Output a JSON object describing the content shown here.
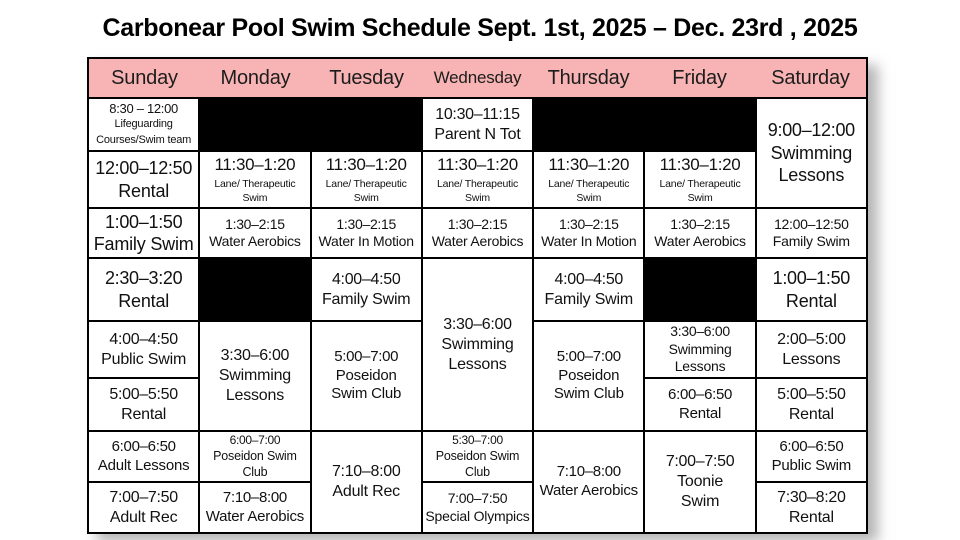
{
  "title": "Carbonear Pool Swim Schedule Sept. 1st, 2025 – Dec. 23rd , 2025",
  "theme": {
    "header_bg": "#f8b4b4",
    "cell_bg": "#ffffff",
    "blackout_bg": "#000000",
    "border_color": "#000000",
    "text_color": "#111111"
  },
  "days": [
    {
      "label": "Sunday"
    },
    {
      "label": "Monday"
    },
    {
      "label": "Tuesday"
    },
    {
      "label": "Wednesday",
      "compact": true
    },
    {
      "label": "Thursday"
    },
    {
      "label": "Friday"
    },
    {
      "label": "Saturday"
    }
  ],
  "columns": [
    {
      "day": "Sunday",
      "cells": [
        {
          "row": 1,
          "span": 1,
          "time": "8:30 – 12:00",
          "label": "Lifeguarding\nCourses/Swim team",
          "size": "sm"
        },
        {
          "row": 2,
          "span": 1,
          "time": "12:00–12:50",
          "label": "Rental",
          "size": "xl"
        },
        {
          "row": 3,
          "span": 1,
          "time": "1:00–1:50",
          "label": "Family Swim",
          "size": "xl"
        },
        {
          "row": 4,
          "span": 1,
          "time": "2:30–3:20",
          "label": "Rental",
          "size": "xl"
        },
        {
          "row": 5,
          "span": 1,
          "time": "4:00–4:50",
          "label": "Public Swim",
          "size": "lg"
        },
        {
          "row": 6,
          "span": 1,
          "time": "5:00–5:50",
          "label": "Rental",
          "size": "lg"
        },
        {
          "row": 7,
          "span": 1,
          "time": "6:00–6:50",
          "label": "Adult Lessons",
          "size": "mdlg"
        },
        {
          "row": 8,
          "span": 1,
          "time": "7:00–7:50",
          "label": "Adult Rec",
          "size": "lg"
        }
      ]
    },
    {
      "day": "Monday",
      "cells": [
        {
          "row": 1,
          "span": 1,
          "black": true
        },
        {
          "row": 2,
          "span": 1,
          "time": "11:30–1:20",
          "label": "Lane/ Therapeutic\nSwim",
          "size": "timebig"
        },
        {
          "row": 3,
          "span": 1,
          "time": "1:30–2:15",
          "label": "Water Aerobics",
          "size": "md"
        },
        {
          "row": 4,
          "span": 1,
          "black": true
        },
        {
          "row": 5,
          "span": 2,
          "time": "3:30–6:00",
          "label": "Swimming\nLessons",
          "size": "lg"
        },
        {
          "row": 7,
          "span": 1,
          "time": "6:00–7:00",
          "label": "Poseidon Swim Club",
          "size": "sm2"
        },
        {
          "row": 8,
          "span": 1,
          "time": "7:10–8:00",
          "label": "Water Aerobics",
          "size": "mdlg"
        }
      ]
    },
    {
      "day": "Tuesday",
      "cells": [
        {
          "row": 1,
          "span": 1,
          "black": true
        },
        {
          "row": 2,
          "span": 1,
          "time": "11:30–1:20",
          "label": "Lane/ Therapeutic\nSwim",
          "size": "timebig"
        },
        {
          "row": 3,
          "span": 1,
          "time": "1:30–2:15",
          "label": "Water In Motion",
          "size": "md"
        },
        {
          "row": 4,
          "span": 1,
          "time": "4:00–4:50",
          "label": "Family Swim",
          "size": "lg"
        },
        {
          "row": 5,
          "span": 2,
          "time": "5:00–7:00",
          "label": "Poseidon\nSwim Club",
          "size": "mdlg"
        },
        {
          "row": 7,
          "span": 2,
          "time": "7:10–8:00",
          "label": "Adult Rec",
          "size": "lg"
        }
      ]
    },
    {
      "day": "Wednesday",
      "cells": [
        {
          "row": 1,
          "span": 1,
          "time": "10:30–11:15",
          "label": "Parent N Tot",
          "size": "lg"
        },
        {
          "row": 2,
          "span": 1,
          "time": "11:30–1:20",
          "label": "Lane/ Therapeutic\nSwim",
          "size": "timebig"
        },
        {
          "row": 3,
          "span": 1,
          "time": "1:30–2:15",
          "label": "Water Aerobics",
          "size": "md"
        },
        {
          "row": 4,
          "span": 3,
          "time": "3:30–6:00",
          "label": "Swimming\nLessons",
          "size": "lg"
        },
        {
          "row": 7,
          "span": 1,
          "time": "5:30–7:00",
          "label": "Poseidon Swim Club",
          "size": "sm2"
        },
        {
          "row": 8,
          "span": 1,
          "time": "7:00–7:50",
          "label": "Special Olympics",
          "size": "md"
        }
      ]
    },
    {
      "day": "Thursday",
      "cells": [
        {
          "row": 1,
          "span": 1,
          "black": true
        },
        {
          "row": 2,
          "span": 1,
          "time": "11:30–1:20",
          "label": "Lane/ Therapeutic\nSwim",
          "size": "timebig"
        },
        {
          "row": 3,
          "span": 1,
          "time": "1:30–2:15",
          "label": "Water In Motion",
          "size": "md"
        },
        {
          "row": 4,
          "span": 1,
          "time": "4:00–4:50",
          "label": "Family Swim",
          "size": "lg"
        },
        {
          "row": 5,
          "span": 2,
          "time": "5:00–7:00",
          "label": "Poseidon\nSwim Club",
          "size": "mdlg"
        },
        {
          "row": 7,
          "span": 2,
          "time": "7:10–8:00",
          "label": "Water Aerobics",
          "size": "mdlg"
        }
      ]
    },
    {
      "day": "Friday",
      "cells": [
        {
          "row": 1,
          "span": 1,
          "black": true
        },
        {
          "row": 2,
          "span": 1,
          "time": "11:30–1:20",
          "label": "Lane/ Therapeutic\nSwim",
          "size": "timebig"
        },
        {
          "row": 3,
          "span": 1,
          "time": "1:30–2:15",
          "label": "Water Aerobics",
          "size": "md"
        },
        {
          "row": 4,
          "span": 1,
          "black": true
        },
        {
          "row": 5,
          "span": 1,
          "time": "3:30–6:00",
          "label": "Swimming\nLessons",
          "size": "md"
        },
        {
          "row": 6,
          "span": 1,
          "time": "6:00–6:50",
          "label": "Rental",
          "size": "mdlg"
        },
        {
          "row": 7,
          "span": 2,
          "time": "7:00–7:50",
          "label": "Toonie\nSwim",
          "size": "lg"
        }
      ]
    },
    {
      "day": "Saturday",
      "cells": [
        {
          "row": 1,
          "span": 2,
          "time": "9:00–12:00",
          "label": "Swimming\nLessons",
          "size": "xl"
        },
        {
          "row": 3,
          "span": 1,
          "time": "12:00–12:50",
          "label": "Family Swim",
          "size": "md"
        },
        {
          "row": 4,
          "span": 1,
          "time": "1:00–1:50",
          "label": "Rental",
          "size": "xl"
        },
        {
          "row": 5,
          "span": 1,
          "time": "2:00–5:00",
          "label": "Lessons",
          "size": "lg"
        },
        {
          "row": 6,
          "span": 1,
          "time": "5:00–5:50",
          "label": "Rental",
          "size": "lg"
        },
        {
          "row": 7,
          "span": 1,
          "time": "6:00–6:50",
          "label": "Public Swim",
          "size": "mdlg"
        },
        {
          "row": 8,
          "span": 1,
          "time": "7:30–8:20",
          "label": "Rental",
          "size": "lg"
        }
      ]
    }
  ]
}
